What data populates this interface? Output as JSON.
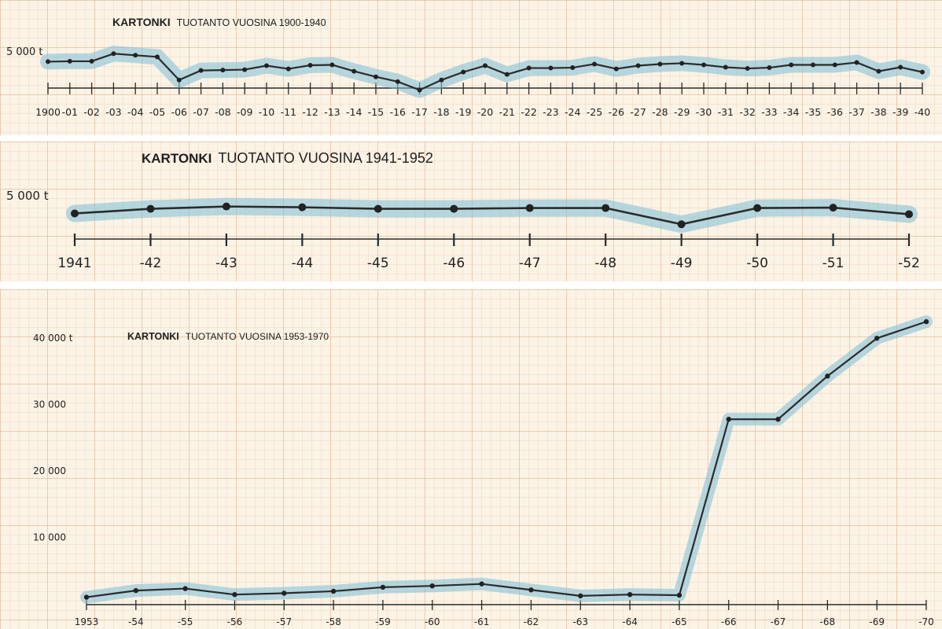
{
  "chart_data": [
    {
      "type": "line",
      "title_main": "KARTONKI",
      "title_sub": "TUOTANTO VUOSINA 1900-1940",
      "y_tick_label": "5 000 t",
      "y_tick_value": 5000,
      "ylim": [
        0,
        6500
      ],
      "x": [
        1900,
        1901,
        1902,
        1903,
        1904,
        1905,
        1906,
        1907,
        1908,
        1909,
        1910,
        1911,
        1912,
        1913,
        1914,
        1915,
        1916,
        1917,
        1918,
        1919,
        1920,
        1921,
        1922,
        1923,
        1924,
        1925,
        1926,
        1927,
        1928,
        1929,
        1930,
        1931,
        1932,
        1933,
        1934,
        1935,
        1936,
        1937,
        1938,
        1939,
        1940
      ],
      "tick_labels": [
        "1900",
        "-01",
        "-02",
        "-03",
        "-04",
        "-05",
        "-06",
        "-07",
        "-08",
        "-09",
        "-10",
        "-11",
        "-12",
        "-13",
        "-14",
        "-15",
        "-16",
        "-17",
        "-18",
        "-19",
        "-20",
        "-21",
        "-22",
        "-23",
        "-24",
        "-25",
        "-26",
        "-27",
        "-28",
        "-29",
        "-30",
        "-31",
        "-32",
        "-33",
        "-34",
        "-35",
        "-36",
        "-37",
        "-38",
        "-39",
        "-40"
      ],
      "values": [
        3700,
        3750,
        3750,
        4700,
        4500,
        4300,
        1400,
        2600,
        2650,
        2700,
        3200,
        2800,
        3250,
        3300,
        2500,
        1800,
        1200,
        150,
        1400,
        2400,
        3200,
        2100,
        2900,
        2900,
        2950,
        3400,
        2800,
        3200,
        3400,
        3500,
        3300,
        3000,
        2850,
        2950,
        3300,
        3300,
        3300,
        3600,
        2500,
        3000,
        2400
      ]
    },
    {
      "type": "line",
      "title_main": "KARTONKI",
      "title_sub": "TUOTANTO VUOSINA 1941-1952",
      "y_tick_label": "5 000 t",
      "y_tick_value": 5000,
      "ylim": [
        0,
        5700
      ],
      "x": [
        1941,
        1942,
        1943,
        1944,
        1945,
        1946,
        1947,
        1948,
        1949,
        1950,
        1951,
        1952
      ],
      "tick_labels": [
        "1941",
        "-42",
        "-43",
        "-44",
        "-45",
        "-46",
        "-47",
        "-48",
        "-49",
        "-50",
        "-51",
        "-52"
      ],
      "values": [
        2700,
        3300,
        3600,
        3500,
        3300,
        3300,
        3400,
        3400,
        1300,
        3400,
        3450,
        2600
      ]
    },
    {
      "type": "line",
      "title_main": "KARTONKI",
      "title_sub": "TUOTANTO VUOSINA 1953-1970",
      "y_ticks": [
        {
          "label": "10 000",
          "value": 10000
        },
        {
          "label": "20 000",
          "value": 20000
        },
        {
          "label": "30 000",
          "value": 30000
        },
        {
          "label": "40 000 t",
          "value": 40000
        }
      ],
      "ylim": [
        0,
        45000
      ],
      "x": [
        1953,
        1954,
        1955,
        1956,
        1957,
        1958,
        1959,
        1960,
        1961,
        1962,
        1963,
        1964,
        1965,
        1966,
        1967,
        1968,
        1969,
        1970
      ],
      "tick_labels": [
        "1953",
        "-54",
        "-55",
        "-56",
        "-57",
        "-58",
        "-59",
        "-60",
        "-61",
        "-62",
        "-63",
        "-64",
        "-65",
        "-66",
        "-67",
        "-68",
        "-69",
        "-70"
      ],
      "values": [
        1000,
        2000,
        2300,
        1400,
        1600,
        1900,
        2500,
        2700,
        3000,
        2100,
        1200,
        1400,
        1300,
        27800,
        27800,
        34300,
        40000,
        42500
      ]
    }
  ]
}
